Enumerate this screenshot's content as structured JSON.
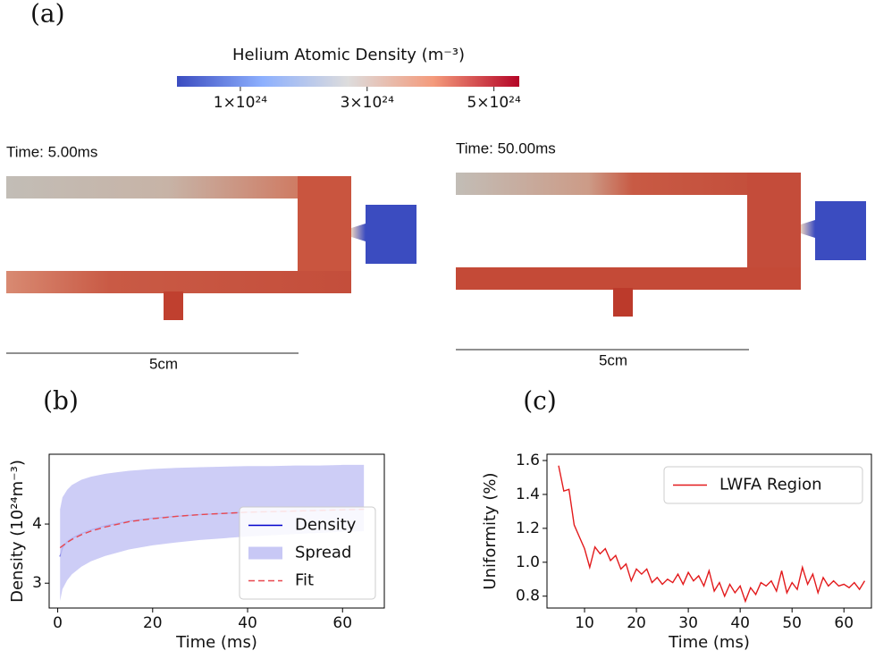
{
  "figure_a": {
    "panel_label": "(a)",
    "colorbar": {
      "title": "Helium Atomic Density (m⁻³)",
      "clim": [
        0,
        5.4e+24
      ],
      "ticks": [
        {
          "value": 1e+24,
          "label": "1×10²⁴"
        },
        {
          "value": 3e+24,
          "label": "3×10²⁴"
        },
        {
          "value": 5e+24,
          "label": "5×10²⁴"
        }
      ]
    },
    "left": {
      "time": "Time: 5.00ms",
      "scale": "5cm"
    },
    "right": {
      "time": "Time: 50.00ms",
      "scale": "5cm"
    }
  },
  "chart_data": [
    {
      "type": "line",
      "panel_label": "(b)",
      "xlabel": "Time (ms)",
      "ylabel": "Density (10²⁴m⁻³)",
      "xlim": [
        -1.8,
        68.8
      ],
      "ylim": [
        2.58,
        5.18
      ],
      "xticks": [
        0,
        20,
        40,
        60
      ],
      "yticks": [
        3,
        4
      ],
      "legend": "lower right",
      "x": [
        0.5,
        1,
        2,
        3,
        5,
        7,
        10,
        15,
        20,
        25,
        30,
        35,
        40,
        45,
        50,
        55,
        60,
        64.5
      ],
      "series": [
        {
          "name": "Density",
          "color": "#0000cc",
          "values": [
            3.45,
            3.6,
            3.7,
            3.76,
            3.84,
            3.9,
            3.97,
            4.05,
            4.1,
            4.13,
            4.16,
            4.18,
            4.2,
            4.21,
            4.22,
            4.23,
            4.24,
            4.25
          ]
        },
        {
          "name": "Spread",
          "color": "#c8c8f5",
          "upper": [
            4.25,
            4.45,
            4.58,
            4.66,
            4.75,
            4.8,
            4.85,
            4.9,
            4.93,
            4.95,
            4.96,
            4.97,
            4.98,
            4.98,
            4.99,
            4.99,
            5.0,
            5.0
          ],
          "lower": [
            2.7,
            2.9,
            3.05,
            3.15,
            3.28,
            3.37,
            3.46,
            3.57,
            3.64,
            3.69,
            3.73,
            3.76,
            3.79,
            3.81,
            3.83,
            3.85,
            3.87,
            3.88
          ]
        },
        {
          "name": "Fit",
          "color": "#e8474f",
          "linestyle": "dashed",
          "values": [
            3.6,
            3.63,
            3.69,
            3.74,
            3.82,
            3.88,
            3.95,
            4.04,
            4.09,
            4.13,
            4.16,
            4.18,
            4.2,
            4.21,
            4.22,
            4.23,
            4.24,
            4.25
          ]
        }
      ]
    },
    {
      "type": "line",
      "panel_label": "(c)",
      "xlabel": "Time (ms)",
      "ylabel": "Uniformity (%)",
      "xlim": [
        2.76,
        65.3
      ],
      "ylim": [
        0.73,
        1.637
      ],
      "xticks": [
        10,
        20,
        30,
        40,
        50,
        60
      ],
      "yticks": [
        0.8,
        {
          "value": 1,
          "label": "1.0"
        },
        1.2,
        1.4,
        1.6
      ],
      "legend": "upper right",
      "x": [
        5,
        6,
        7,
        8,
        9,
        10,
        11,
        12,
        13,
        14,
        15,
        16,
        17,
        18,
        19,
        20,
        21,
        22,
        23,
        24,
        25,
        26,
        27,
        28,
        29,
        30,
        31,
        32,
        33,
        34,
        35,
        36,
        37,
        38,
        39,
        40,
        41,
        42,
        43,
        44,
        45,
        46,
        47,
        48,
        49,
        50,
        51,
        52,
        53,
        54,
        55,
        56,
        57,
        58,
        59,
        60,
        61,
        62,
        63,
        64
      ],
      "series": [
        {
          "name": "LWFA Region",
          "color": "#e31a1c",
          "values": [
            1.57,
            1.42,
            1.43,
            1.22,
            1.15,
            1.08,
            0.97,
            1.09,
            1.05,
            1.08,
            1.01,
            1.04,
            0.96,
            0.99,
            0.89,
            0.96,
            0.93,
            0.96,
            0.88,
            0.91,
            0.87,
            0.9,
            0.88,
            0.93,
            0.87,
            0.94,
            0.89,
            0.92,
            0.86,
            0.95,
            0.83,
            0.88,
            0.8,
            0.87,
            0.82,
            0.86,
            0.77,
            0.85,
            0.81,
            0.88,
            0.86,
            0.89,
            0.83,
            0.95,
            0.82,
            0.88,
            0.84,
            0.97,
            0.87,
            0.93,
            0.82,
            0.91,
            0.86,
            0.89,
            0.86,
            0.87,
            0.85,
            0.88,
            0.84,
            0.89
          ]
        }
      ]
    }
  ]
}
